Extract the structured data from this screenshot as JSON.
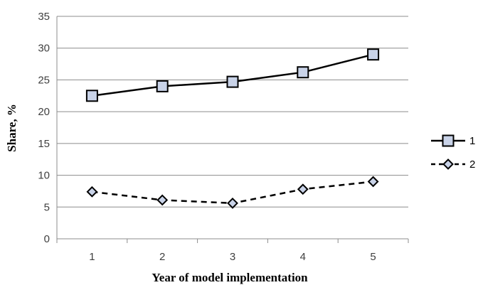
{
  "chart_data": {
    "type": "line",
    "title": "",
    "xlabel": "Year of model implementation",
    "ylabel": "Share, %",
    "x": [
      1,
      2,
      3,
      4,
      5
    ],
    "xlim": [
      0.5,
      5.5
    ],
    "ylim": [
      0,
      35
    ],
    "yticks": [
      0,
      5,
      10,
      15,
      20,
      25,
      30,
      35
    ],
    "grid": "horizontal",
    "legend_position": "right",
    "series": [
      {
        "name": "1",
        "values": [
          22.5,
          24.0,
          24.7,
          26.2,
          29.0
        ],
        "line": "solid",
        "marker": "square",
        "marker_fill": "#c9d3e8",
        "color": "#000000"
      },
      {
        "name": "2",
        "values": [
          7.4,
          6.1,
          5.6,
          7.8,
          9.0
        ],
        "line": "dashed",
        "marker": "diamond",
        "marker_fill": "#c9d3e8",
        "color": "#000000"
      }
    ]
  }
}
